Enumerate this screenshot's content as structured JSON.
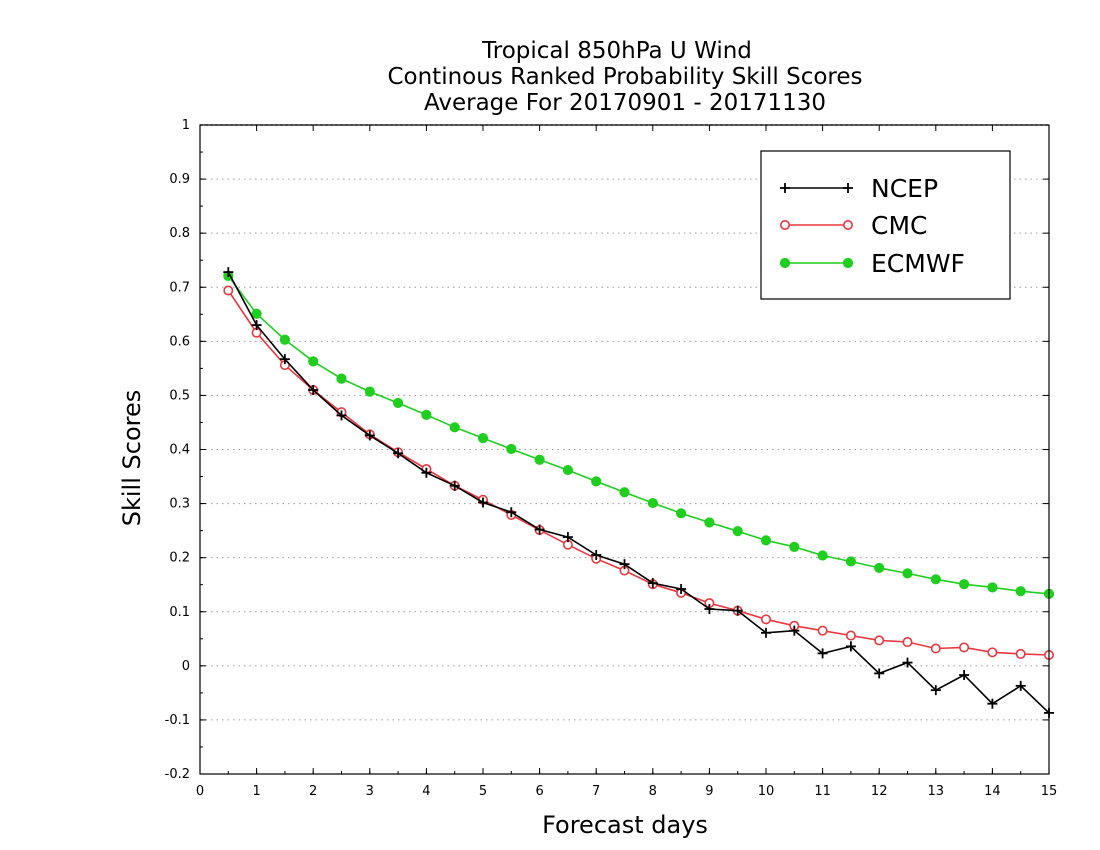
{
  "chart_data": {
    "type": "line",
    "title": [
      "Tropical 850hPa U Wind",
      "Continous Ranked Probability Skill Scores",
      "Average For 20170901 - 20171130"
    ],
    "xlabel": "Forecast days",
    "ylabel": "Skill Scores",
    "xlim": [
      0,
      15
    ],
    "ylim": [
      -0.2,
      1
    ],
    "xticks": [
      0,
      1,
      2,
      3,
      4,
      5,
      6,
      7,
      8,
      9,
      10,
      11,
      12,
      13,
      14,
      15
    ],
    "yticks": [
      -0.2,
      -0.1,
      0,
      0.1,
      0.2,
      0.3,
      0.4,
      0.5,
      0.6,
      0.7,
      0.8,
      0.9,
      1
    ],
    "ytick_labels": [
      "-0.2",
      "-0.1",
      "0",
      "0.1",
      "0.2",
      "0.3",
      "0.4",
      "0.5",
      "0.6",
      "0.7",
      "0.8",
      "0.9",
      "1"
    ],
    "grid": "horizontal dotted",
    "legend_position": "top-right",
    "x": [
      0.5,
      1,
      1.5,
      2,
      2.5,
      3,
      3.5,
      4,
      4.5,
      5,
      5.5,
      6,
      6.5,
      7,
      7.5,
      8,
      8.5,
      9,
      9.5,
      10,
      10.5,
      11,
      11.5,
      12,
      12.5,
      13,
      13.5,
      14,
      14.5,
      15
    ],
    "series": [
      {
        "name": "NCEP",
        "color": "#000000",
        "marker": "plus",
        "values": [
          0.728,
          0.63,
          0.567,
          0.51,
          0.463,
          0.426,
          0.393,
          0.357,
          0.333,
          0.302,
          0.284,
          0.252,
          0.238,
          0.205,
          0.188,
          0.153,
          0.142,
          0.105,
          0.102,
          0.061,
          0.065,
          0.023,
          0.036,
          -0.014,
          0.006,
          -0.045,
          -0.017,
          -0.07,
          -0.037,
          -0.087
        ]
      },
      {
        "name": "CMC",
        "color": "#e8383d",
        "marker": "open-circle",
        "values": [
          0.694,
          0.616,
          0.556,
          0.51,
          0.469,
          0.428,
          0.395,
          0.364,
          0.333,
          0.307,
          0.279,
          0.251,
          0.224,
          0.198,
          0.176,
          0.151,
          0.135,
          0.116,
          0.102,
          0.086,
          0.074,
          0.065,
          0.056,
          0.047,
          0.044,
          0.032,
          0.034,
          0.025,
          0.022,
          0.02
        ]
      },
      {
        "name": "ECMWF",
        "color": "#1fce1f",
        "marker": "filled-circle",
        "values": [
          0.721,
          0.651,
          0.603,
          0.563,
          0.531,
          0.507,
          0.486,
          0.464,
          0.441,
          0.421,
          0.401,
          0.381,
          0.362,
          0.341,
          0.321,
          0.301,
          0.282,
          0.265,
          0.249,
          0.232,
          0.22,
          0.204,
          0.193,
          0.181,
          0.171,
          0.16,
          0.151,
          0.145,
          0.138,
          0.133
        ]
      }
    ]
  }
}
